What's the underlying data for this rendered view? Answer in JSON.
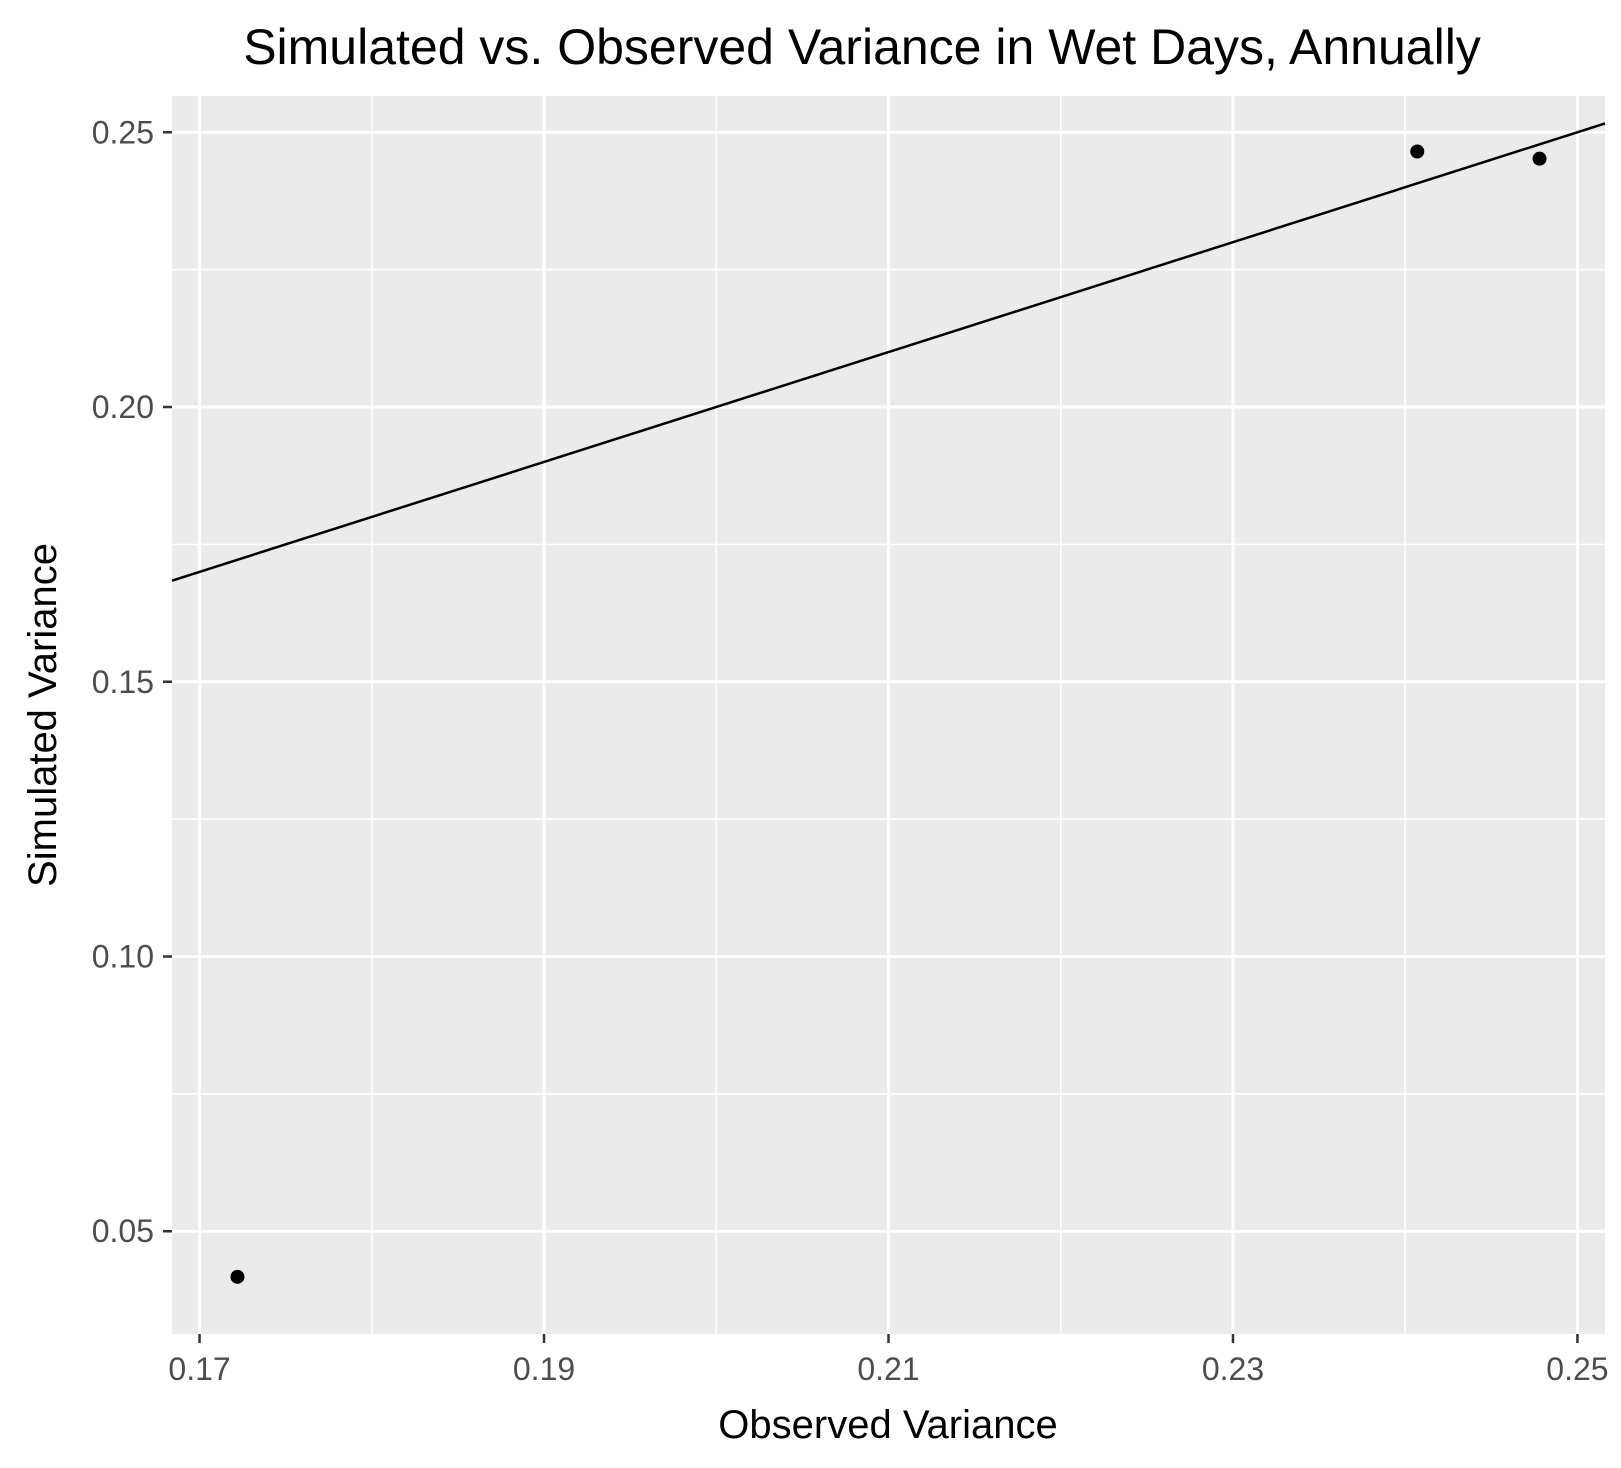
{
  "chart_data": {
    "type": "scatter",
    "title": "Simulated vs. Observed Variance in Wet Days, Annually",
    "xlabel": "Observed Variance",
    "ylabel": "Simulated Variance",
    "xlim": [
      0.1684,
      0.2516
    ],
    "ylim": [
      0.0313,
      0.2566
    ],
    "x_ticks": [
      0.17,
      0.19,
      0.21,
      0.23,
      0.25
    ],
    "x_tick_labels": [
      "0.17",
      "0.19",
      "0.21",
      "0.23",
      "0.25"
    ],
    "y_ticks": [
      0.05,
      0.1,
      0.15,
      0.2,
      0.25
    ],
    "y_tick_labels": [
      "0.05",
      "0.10",
      "0.15",
      "0.20",
      "0.25"
    ],
    "grid": true,
    "reference_line": {
      "intercept": 0,
      "slope": 1
    },
    "points": [
      {
        "x": 0.1722,
        "y": 0.0417
      },
      {
        "x": 0.2407,
        "y": 0.2465
      },
      {
        "x": 0.2478,
        "y": 0.2452
      }
    ],
    "colors": {
      "panel_background": "#ebebeb",
      "grid": "#ffffff",
      "point": "#000000",
      "line": "#000000"
    }
  }
}
